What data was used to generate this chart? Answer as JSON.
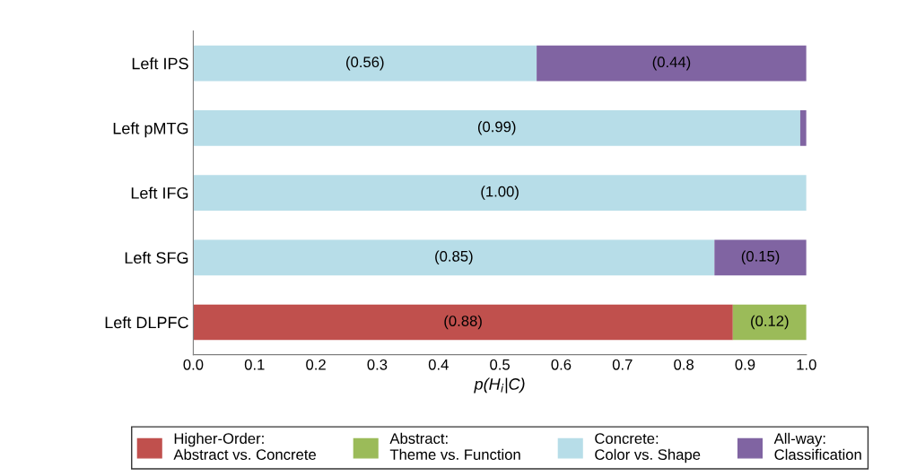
{
  "chart_data": {
    "type": "bar",
    "orientation": "horizontal",
    "stacked": true,
    "categories": [
      "Left IPS",
      "Left pMTG",
      "Left IFG",
      "Left SFG",
      "Left DLPFC"
    ],
    "xlabel": "p(H$_{i}$|C)",
    "xlim": [
      0,
      1
    ],
    "xticks": [
      {
        "value": 0,
        "label": "0.0"
      },
      0.1,
      0.2,
      0.3,
      0.4,
      0.5,
      0.6,
      0.7,
      0.8,
      0.9,
      {
        "value": 1,
        "label": "1.0"
      }
    ],
    "series": [
      {
        "name": "Higher-Order:\nAbstract vs. Concrete",
        "color": "#c0504d",
        "values": [
          0,
          0,
          0,
          0,
          0.88
        ],
        "value_labels": [
          null,
          null,
          null,
          null,
          "(0.88)"
        ]
      },
      {
        "name": "Abstract:\nTheme vs. Function",
        "color": "#9bbb59",
        "values": [
          0,
          0,
          0,
          0,
          0.12
        ],
        "value_labels": [
          null,
          null,
          null,
          null,
          "(0.12)"
        ]
      },
      {
        "name": "Concrete:\nColor vs. Shape",
        "color": "#b7dde8",
        "values": [
          0.56,
          0.99,
          1.0,
          0.85,
          0
        ],
        "value_labels": [
          "(0.56)",
          "(0.99)",
          "(1.00)",
          "(0.85)",
          null
        ]
      },
      {
        "name": "All-way:\nClassification",
        "color": "#8064a2",
        "values": [
          0.44,
          0.01,
          0,
          0.15,
          0
        ],
        "value_labels": [
          "(0.44)",
          null,
          null,
          "(0.15)",
          null
        ]
      }
    ],
    "grid": false,
    "legend": "bottom"
  }
}
